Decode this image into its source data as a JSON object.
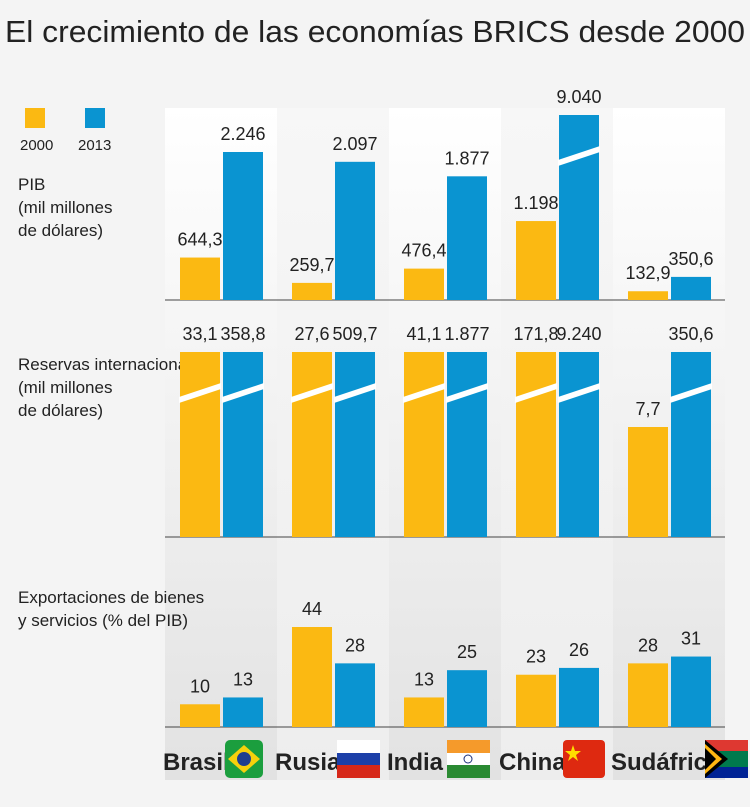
{
  "title": "El crecimiento de las economías BRICS desde 2000",
  "chart_data": [
    {
      "type": "bar",
      "title": [
        "PIB",
        "(mil millones",
        " de dólares)"
      ],
      "series": [
        {
          "name": "2000",
          "color": "#fbb912",
          "values": [
            644.3,
            259.7,
            476.4,
            1198,
            132.9
          ],
          "value_labels": [
            "644,3",
            "259,7",
            "476,4",
            "1.198",
            "132,9"
          ]
        },
        {
          "name": "2013",
          "color": "#0a94d1",
          "values": [
            2246,
            2097,
            1877,
            9040,
            350.6
          ],
          "value_labels": [
            "2.246",
            "2.097",
            "1.877",
            "9.040",
            "350,6"
          ]
        }
      ]
    },
    {
      "type": "bar",
      "title": [
        "Reservas internacionales",
        "(mil millones",
        " de dólares)"
      ],
      "series": [
        {
          "color": "#fbb912",
          "values": [
            33.1,
            27.6,
            41.1,
            171.8,
            7.7
          ],
          "value_labels": [
            "33,1",
            "27,6",
            "41,1",
            "171,8",
            "7,7"
          ]
        },
        {
          "color": "#0a94d1",
          "values": [
            358.8,
            509.7,
            1877,
            9240,
            350.6
          ],
          "value_labels": [
            "358,8",
            "509,7",
            "1.877",
            "9.240",
            "350,6"
          ]
        }
      ]
    },
    {
      "type": "bar",
      "title": [
        "Exportaciones de bienes",
        " y servicios (% del PIB)"
      ],
      "categories": [
        "Brasil",
        "Rusia",
        "India",
        "China",
        "Sudáfrica"
      ],
      "series": [
        {
          "color": "#fbb912",
          "values": [
            10,
            44,
            13,
            23,
            28
          ]
        },
        {
          "color": "#0a94d1",
          "values": [
            13,
            28,
            25,
            26,
            31
          ]
        }
      ]
    }
  ]
}
